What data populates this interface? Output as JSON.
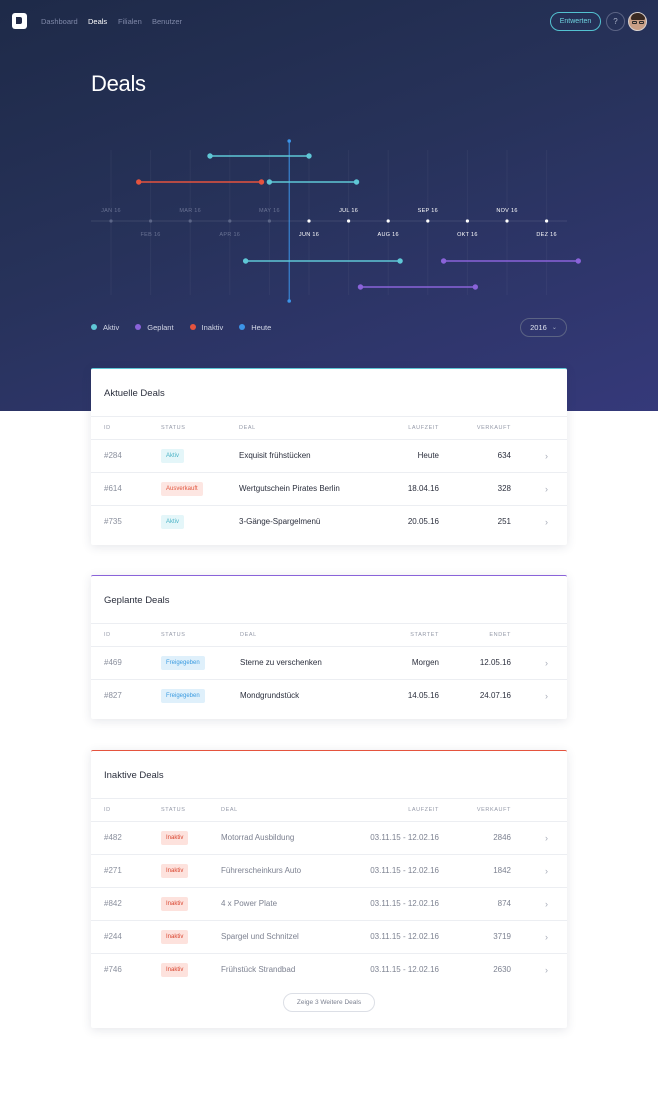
{
  "nav": {
    "items": [
      {
        "label": "Dashboard",
        "active": false
      },
      {
        "label": "Deals",
        "active": true
      },
      {
        "label": "Filialen",
        "active": false
      },
      {
        "label": "Benutzer",
        "active": false
      }
    ],
    "entwerten_label": "Entwerten",
    "help_label": "?"
  },
  "page": {
    "title": "Deals"
  },
  "timeline": {
    "months_upper": [
      "JAN 16",
      "MAR 16",
      "MAY 16",
      "JUL 16",
      "SEP 16",
      "NOV 16"
    ],
    "months_lower": [
      "FEB 16",
      "APR 16",
      "JUN 16",
      "AUG 16",
      "OKT 16",
      "DEZ 16"
    ],
    "today_marker": "Heute"
  },
  "chart_data": {
    "type": "gantt",
    "year": "2016",
    "months": [
      "JAN 16",
      "FEB 16",
      "MAR 16",
      "APR 16",
      "MAY 16",
      "JUN 16",
      "JUL 16",
      "AUG 16",
      "SEP 16",
      "OKT 16",
      "NOV 16",
      "DEZ 16"
    ],
    "today": 4.5,
    "bars": [
      {
        "status": "Aktiv",
        "start": 2.5,
        "end": 5.0,
        "lane": "above",
        "row": 1
      },
      {
        "status": "Inaktiv",
        "start": 0.7,
        "end": 3.8,
        "lane": "above",
        "row": 2
      },
      {
        "status": "Aktiv",
        "start": 4.0,
        "end": 6.2,
        "lane": "above",
        "row": 2
      },
      {
        "status": "Aktiv",
        "start": 3.4,
        "end": 7.3,
        "lane": "below",
        "row": 1
      },
      {
        "status": "Geplant",
        "start": 8.4,
        "end": 11.8,
        "lane": "below",
        "row": 1
      },
      {
        "status": "Geplant",
        "start": 6.3,
        "end": 9.2,
        "lane": "below",
        "row": 2
      }
    ]
  },
  "legend": [
    {
      "label": "Aktiv",
      "color": "#5fc7d6"
    },
    {
      "label": "Geplant",
      "color": "#8a63d9"
    },
    {
      "label": "Inaktiv",
      "color": "#e5533e"
    },
    {
      "label": "Heute",
      "color": "#3c94e8"
    }
  ],
  "year_select": {
    "value": "2016"
  },
  "colors": {
    "aktiv": "#5fc7d6",
    "geplant": "#8a63d9",
    "inaktiv": "#e5533e",
    "heute": "#3c94e8"
  },
  "aktuelle": {
    "title": "Aktuelle Deals",
    "headers": {
      "id": "ID",
      "status": "Status",
      "deal": "Deal",
      "laufzeit": "Laufzeit",
      "verkauft": "Verkauft"
    },
    "rows": [
      {
        "id": "#284",
        "status": "Aktiv",
        "deal": "Exquisit frühstücken",
        "laufzeit": "Heute",
        "verkauft": "634"
      },
      {
        "id": "#614",
        "status": "Ausverkauft",
        "deal": "Wertgutschein Pirates Berlin",
        "laufzeit": "18.04.16",
        "verkauft": "328"
      },
      {
        "id": "#735",
        "status": "Aktiv",
        "deal": "3-Gänge-Spargelmenü",
        "laufzeit": "20.05.16",
        "verkauft": "251"
      }
    ]
  },
  "geplante": {
    "title": "Geplante Deals",
    "headers": {
      "id": "ID",
      "status": "Status",
      "deal": "Deal",
      "startet": "Startet",
      "endet": "Endet"
    },
    "rows": [
      {
        "id": "#469",
        "status": "Freigegeben",
        "deal": "Sterne zu verschenken",
        "startet": "Morgen",
        "endet": "12.05.16"
      },
      {
        "id": "#827",
        "status": "Freigegeben",
        "deal": "Mondgrundstück",
        "startet": "14.05.16",
        "endet": "24.07.16"
      }
    ]
  },
  "inaktive": {
    "title": "Inaktive Deals",
    "headers": {
      "id": "ID",
      "status": "Status",
      "deal": "Deal",
      "laufzeit": "Laufzeit",
      "verkauft": "Verkauft"
    },
    "rows": [
      {
        "id": "#482",
        "status": "Inaktiv",
        "deal": "Motorrad Ausbildung",
        "laufzeit": "03.11.15 - 12.02.16",
        "verkauft": "2846"
      },
      {
        "id": "#271",
        "status": "Inaktiv",
        "deal": "Führerscheinkurs Auto",
        "laufzeit": "03.11.15 - 12.02.16",
        "verkauft": "1842"
      },
      {
        "id": "#842",
        "status": "Inaktiv",
        "deal": "4 x Power Plate",
        "laufzeit": "03.11.15 - 12.02.16",
        "verkauft": "874"
      },
      {
        "id": "#244",
        "status": "Inaktiv",
        "deal": "Spargel und Schnitzel",
        "laufzeit": "03.11.15 - 12.02.16",
        "verkauft": "3719"
      },
      {
        "id": "#746",
        "status": "Inaktiv",
        "deal": "Frühstück Strandbad",
        "laufzeit": "03.11.15 - 12.02.16",
        "verkauft": "2630"
      }
    ],
    "more_label": "Zeige 3 Weitere Deals"
  }
}
